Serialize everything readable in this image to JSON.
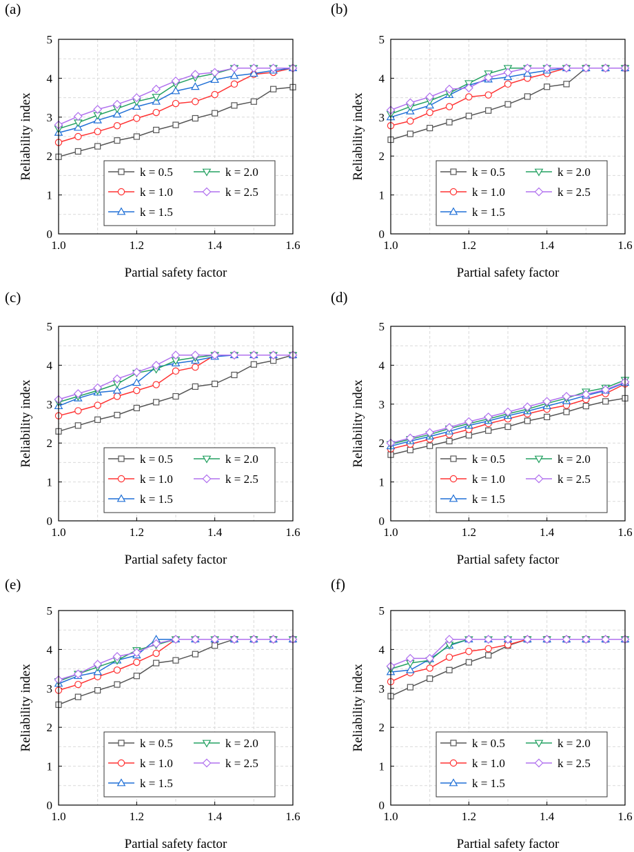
{
  "figure": {
    "x_label": "Partial safety factor",
    "y_label": "Reliability index",
    "x_ticks": [
      "1.0",
      "1.2",
      "1.4",
      "1.6"
    ],
    "y_ticks": [
      "0",
      "1",
      "2",
      "3",
      "4",
      "5"
    ],
    "legend": [
      "k = 0.5",
      "k = 1.0",
      "k = 1.5",
      "k = 2.0",
      "k = 2.5"
    ],
    "series_colors": [
      "#555555",
      "#ff3030",
      "#1f6fd6",
      "#22a060",
      "#b070ee"
    ],
    "series_markers": [
      "square",
      "circle",
      "triangle-up",
      "triangle-down",
      "diamond"
    ],
    "grid_color": "#d9d9d9"
  },
  "chart_data": [
    {
      "panel": "(a)",
      "type": "line",
      "xlim": [
        1.0,
        1.6
      ],
      "ylim": [
        0,
        5
      ],
      "legend_position": "lower-right",
      "grid": true,
      "x": [
        1.0,
        1.05,
        1.1,
        1.15,
        1.2,
        1.25,
        1.3,
        1.35,
        1.4,
        1.45,
        1.5,
        1.55,
        1.6
      ],
      "series": [
        {
          "name": "k = 0.5",
          "values": [
            1.98,
            2.12,
            2.25,
            2.4,
            2.5,
            2.67,
            2.8,
            2.97,
            3.1,
            3.3,
            3.4,
            3.72,
            3.77
          ]
        },
        {
          "name": "k = 1.0",
          "values": [
            2.35,
            2.5,
            2.63,
            2.78,
            2.97,
            3.12,
            3.35,
            3.4,
            3.58,
            3.85,
            4.1,
            4.15,
            4.26
          ]
        },
        {
          "name": "k = 1.5",
          "values": [
            2.6,
            2.73,
            2.92,
            3.07,
            3.27,
            3.4,
            3.67,
            3.78,
            3.96,
            4.06,
            4.12,
            4.2,
            4.26
          ]
        },
        {
          "name": "k = 2.0",
          "values": [
            2.7,
            2.86,
            3.05,
            3.22,
            3.4,
            3.52,
            3.85,
            4.02,
            4.12,
            4.26,
            4.26,
            4.26,
            4.26
          ]
        },
        {
          "name": "k = 2.5",
          "values": [
            2.8,
            3.02,
            3.2,
            3.33,
            3.5,
            3.72,
            3.93,
            4.1,
            4.15,
            4.26,
            4.26,
            4.26,
            4.26
          ]
        }
      ]
    },
    {
      "panel": "(b)",
      "type": "line",
      "xlim": [
        1.0,
        1.6
      ],
      "ylim": [
        0,
        5
      ],
      "legend_position": "lower-right",
      "grid": true,
      "x": [
        1.0,
        1.05,
        1.1,
        1.15,
        1.2,
        1.25,
        1.3,
        1.35,
        1.4,
        1.45,
        1.5,
        1.55,
        1.6
      ],
      "series": [
        {
          "name": "k = 0.5",
          "values": [
            2.42,
            2.57,
            2.72,
            2.87,
            3.03,
            3.17,
            3.33,
            3.53,
            3.78,
            3.85,
            4.26,
            4.26,
            4.26
          ]
        },
        {
          "name": "k = 1.0",
          "values": [
            2.78,
            2.9,
            3.12,
            3.27,
            3.52,
            3.57,
            3.85,
            4.0,
            4.12,
            4.26,
            4.26,
            4.26,
            4.26
          ]
        },
        {
          "name": "k = 1.5",
          "values": [
            3.0,
            3.15,
            3.3,
            3.57,
            3.82,
            3.97,
            4.03,
            4.12,
            4.2,
            4.26,
            4.26,
            4.26,
            4.26
          ]
        },
        {
          "name": "k = 2.0",
          "values": [
            3.08,
            3.27,
            3.42,
            3.62,
            3.87,
            4.12,
            4.26,
            4.26,
            4.26,
            4.26,
            4.26,
            4.26,
            4.26
          ]
        },
        {
          "name": "k = 2.5",
          "values": [
            3.18,
            3.37,
            3.52,
            3.72,
            3.75,
            4.02,
            4.15,
            4.26,
            4.26,
            4.26,
            4.26,
            4.26,
            4.26
          ]
        }
      ]
    },
    {
      "panel": "(c)",
      "type": "line",
      "xlim": [
        1.0,
        1.6
      ],
      "ylim": [
        0,
        5
      ],
      "legend_position": "lower-right",
      "grid": true,
      "x": [
        1.0,
        1.05,
        1.1,
        1.15,
        1.2,
        1.25,
        1.3,
        1.35,
        1.4,
        1.45,
        1.5,
        1.55,
        1.6
      ],
      "series": [
        {
          "name": "k = 0.5",
          "values": [
            2.3,
            2.45,
            2.6,
            2.72,
            2.9,
            3.05,
            3.2,
            3.45,
            3.52,
            3.75,
            4.02,
            4.12,
            4.26
          ]
        },
        {
          "name": "k = 1.0",
          "values": [
            2.7,
            2.83,
            2.97,
            3.2,
            3.35,
            3.5,
            3.85,
            3.95,
            4.26,
            4.26,
            4.26,
            4.26,
            4.26
          ]
        },
        {
          "name": "k = 1.5",
          "values": [
            2.95,
            3.15,
            3.3,
            3.35,
            3.55,
            3.95,
            4.05,
            4.12,
            4.22,
            4.26,
            4.26,
            4.26,
            4.26
          ]
        },
        {
          "name": "k = 2.0",
          "values": [
            3.05,
            3.2,
            3.35,
            3.52,
            3.8,
            3.9,
            4.12,
            4.2,
            4.26,
            4.26,
            4.26,
            4.26,
            4.26
          ]
        },
        {
          "name": "k = 2.5",
          "values": [
            3.12,
            3.27,
            3.42,
            3.65,
            3.82,
            4.0,
            4.26,
            4.26,
            4.26,
            4.26,
            4.26,
            4.26,
            4.26
          ]
        }
      ]
    },
    {
      "panel": "(d)",
      "type": "line",
      "xlim": [
        1.0,
        1.6
      ],
      "ylim": [
        0,
        5
      ],
      "legend_position": "lower-right",
      "grid": true,
      "x": [
        1.0,
        1.05,
        1.1,
        1.15,
        1.2,
        1.25,
        1.3,
        1.35,
        1.4,
        1.45,
        1.5,
        1.55,
        1.6
      ],
      "series": [
        {
          "name": "k = 0.5",
          "values": [
            1.7,
            1.82,
            1.93,
            2.05,
            2.2,
            2.32,
            2.42,
            2.57,
            2.67,
            2.8,
            2.95,
            3.07,
            3.15
          ]
        },
        {
          "name": "k = 1.0",
          "values": [
            1.85,
            1.97,
            2.1,
            2.22,
            2.35,
            2.5,
            2.62,
            2.75,
            2.87,
            2.97,
            3.12,
            3.27,
            3.52
          ]
        },
        {
          "name": "k = 1.5",
          "values": [
            1.92,
            2.05,
            2.17,
            2.3,
            2.45,
            2.57,
            2.7,
            2.82,
            2.95,
            3.08,
            3.22,
            3.35,
            3.55
          ]
        },
        {
          "name": "k = 2.0",
          "values": [
            1.97,
            2.1,
            2.22,
            2.37,
            2.5,
            2.62,
            2.75,
            2.87,
            3.02,
            3.15,
            3.32,
            3.42,
            3.62
          ]
        },
        {
          "name": "k = 2.5",
          "values": [
            2.0,
            2.13,
            2.27,
            2.4,
            2.55,
            2.67,
            2.8,
            2.93,
            3.07,
            3.2,
            3.25,
            3.37,
            3.57
          ]
        }
      ]
    },
    {
      "panel": "(e)",
      "type": "line",
      "xlim": [
        1.0,
        1.6
      ],
      "ylim": [
        0,
        5
      ],
      "legend_position": "lower-right",
      "grid": true,
      "x": [
        1.0,
        1.05,
        1.1,
        1.15,
        1.2,
        1.25,
        1.3,
        1.35,
        1.4,
        1.45,
        1.5,
        1.55,
        1.6
      ],
      "series": [
        {
          "name": "k = 0.5",
          "values": [
            2.58,
            2.78,
            2.95,
            3.1,
            3.32,
            3.65,
            3.72,
            3.88,
            4.1,
            4.26,
            4.26,
            4.26,
            4.26
          ]
        },
        {
          "name": "k = 1.0",
          "values": [
            2.95,
            3.1,
            3.3,
            3.47,
            3.67,
            3.9,
            4.26,
            4.26,
            4.26,
            4.26,
            4.26,
            4.26,
            4.26
          ]
        },
        {
          "name": "k = 1.5",
          "values": [
            3.12,
            3.32,
            3.42,
            3.72,
            3.85,
            4.26,
            4.26,
            4.26,
            4.26,
            4.26,
            4.26,
            4.26,
            4.26
          ]
        },
        {
          "name": "k = 2.0",
          "values": [
            3.18,
            3.37,
            3.55,
            3.72,
            3.98,
            4.12,
            4.26,
            4.26,
            4.26,
            4.26,
            4.26,
            4.26,
            4.26
          ]
        },
        {
          "name": "k = 2.5",
          "values": [
            3.22,
            3.37,
            3.62,
            3.82,
            3.92,
            4.15,
            4.26,
            4.26,
            4.26,
            4.26,
            4.26,
            4.26,
            4.26
          ]
        }
      ]
    },
    {
      "panel": "(f)",
      "type": "line",
      "xlim": [
        1.0,
        1.6
      ],
      "ylim": [
        0,
        5
      ],
      "legend_position": "lower-right",
      "grid": true,
      "x": [
        1.0,
        1.05,
        1.1,
        1.15,
        1.2,
        1.25,
        1.3,
        1.35,
        1.4,
        1.45,
        1.5,
        1.55,
        1.6
      ],
      "series": [
        {
          "name": "k = 0.5",
          "values": [
            2.8,
            3.03,
            3.25,
            3.47,
            3.67,
            3.85,
            4.1,
            4.26,
            4.26,
            4.26,
            4.26,
            4.26,
            4.26
          ]
        },
        {
          "name": "k = 1.0",
          "values": [
            3.17,
            3.4,
            3.52,
            3.8,
            3.95,
            4.02,
            4.12,
            4.26,
            4.26,
            4.26,
            4.26,
            4.26,
            4.26
          ]
        },
        {
          "name": "k = 1.5",
          "values": [
            3.42,
            3.47,
            3.75,
            4.1,
            4.26,
            4.26,
            4.26,
            4.26,
            4.26,
            4.26,
            4.26,
            4.26,
            4.26
          ]
        },
        {
          "name": "k = 2.0",
          "values": [
            3.5,
            3.65,
            3.72,
            4.12,
            4.26,
            4.26,
            4.26,
            4.26,
            4.26,
            4.26,
            4.26,
            4.26,
            4.26
          ]
        },
        {
          "name": "k = 2.5",
          "values": [
            3.57,
            3.77,
            3.77,
            4.26,
            4.26,
            4.26,
            4.26,
            4.26,
            4.26,
            4.26,
            4.26,
            4.26,
            4.26
          ]
        }
      ]
    }
  ]
}
